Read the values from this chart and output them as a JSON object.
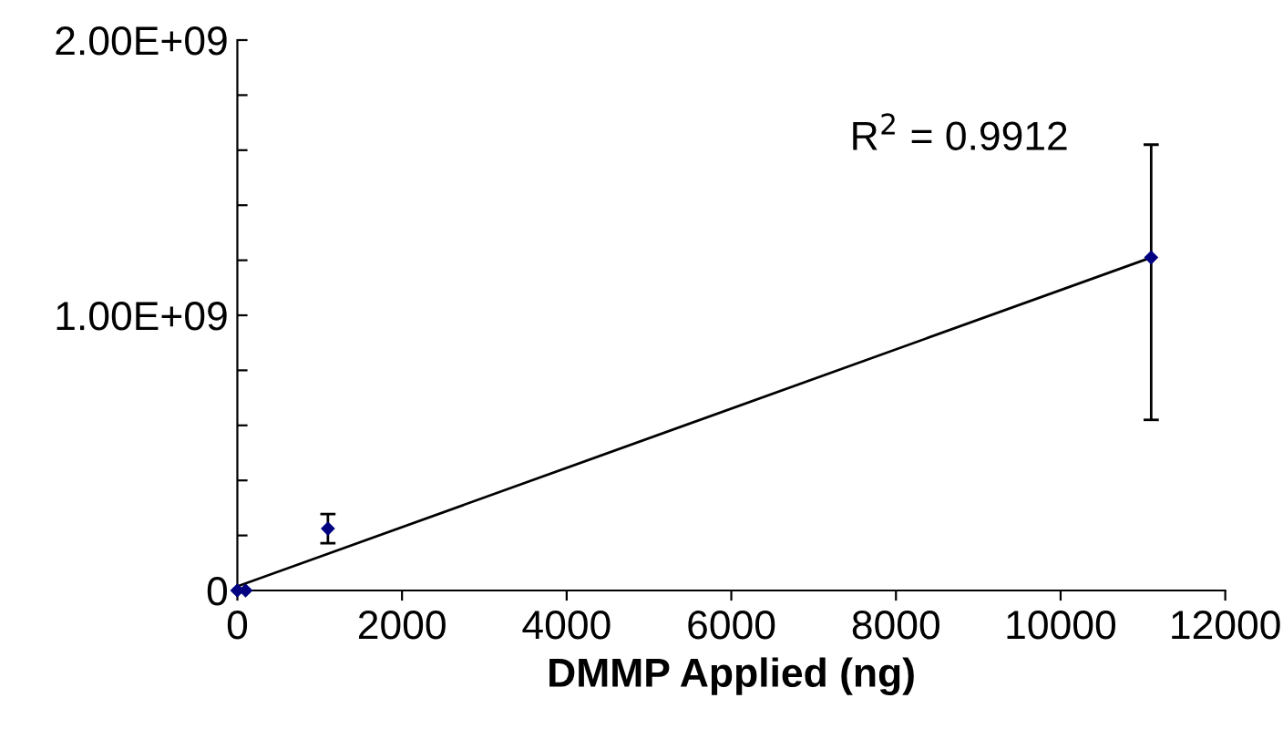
{
  "chart_data": {
    "type": "scatter",
    "xlabel": "DMMP Applied (ng)",
    "xlim": [
      0,
      12000
    ],
    "xticks": [
      0,
      2000,
      4000,
      6000,
      8000,
      10000,
      12000
    ],
    "ylim": [
      0,
      2000000000
    ],
    "yticks": [
      {
        "value": 0,
        "label": "0"
      },
      {
        "value": 200000000,
        "label": null
      },
      {
        "value": 400000000,
        "label": null
      },
      {
        "value": 600000000,
        "label": null
      },
      {
        "value": 800000000,
        "label": null
      },
      {
        "value": 1000000000,
        "label": "1.00E+09"
      },
      {
        "value": 1200000000,
        "label": null
      },
      {
        "value": 1400000000,
        "label": null
      },
      {
        "value": 1600000000,
        "label": null
      },
      {
        "value": 1800000000,
        "label": null
      },
      {
        "value": 2000000000,
        "label": "2.00E+09"
      }
    ],
    "grid": false,
    "series": [
      {
        "marker": "diamond",
        "color": "#000080",
        "x": [
          0,
          100,
          1100,
          11100
        ],
        "values": [
          0,
          0,
          225000000,
          1210000000
        ],
        "errors": [
          null,
          null,
          [
            172000000,
            278000000
          ],
          [
            620000000,
            1620000000
          ]
        ]
      },
      {
        "type": "line",
        "marker": "none",
        "color": "#000000",
        "x": [
          0,
          11100
        ],
        "values": [
          15000000,
          1210000000
        ]
      }
    ],
    "annotations": [
      "R$^{2}$ = 0.9912"
    ]
  }
}
